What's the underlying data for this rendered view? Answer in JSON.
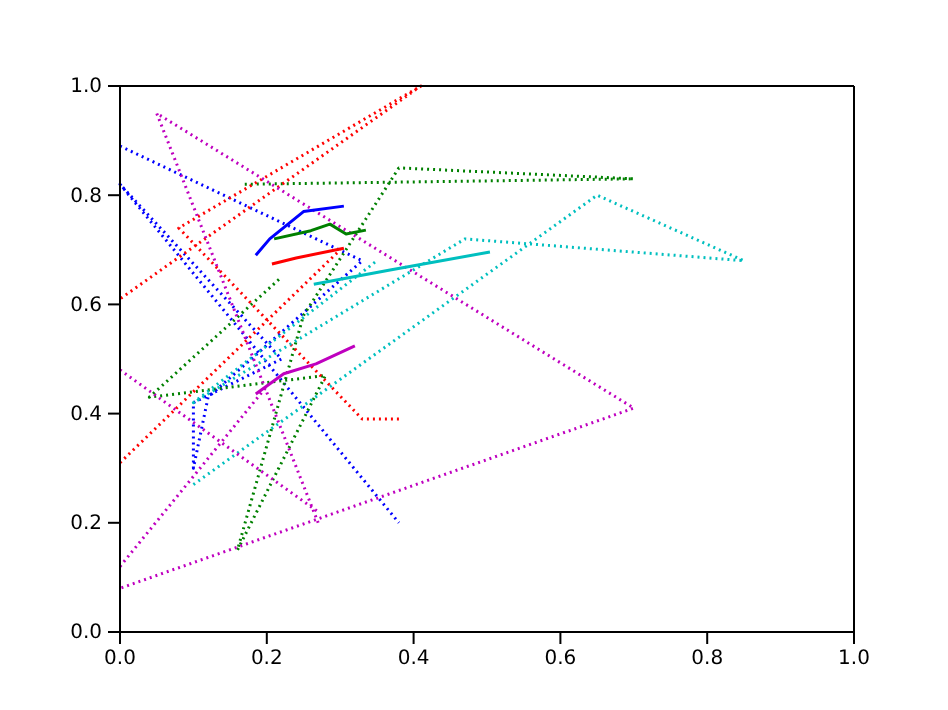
{
  "chart_data": {
    "type": "line",
    "xlim": [
      0,
      1
    ],
    "ylim": [
      0,
      1
    ],
    "xticks": [
      {
        "value": 0,
        "label": "0.0"
      },
      {
        "value": 0.2,
        "label": "0.2"
      },
      {
        "value": 0.4,
        "label": "0.4"
      },
      {
        "value": 0.6,
        "label": "0.6"
      },
      {
        "value": 0.8,
        "label": "0.8"
      },
      {
        "value": 1,
        "label": "1.0"
      }
    ],
    "yticks": [
      {
        "value": 0,
        "label": "0.0"
      },
      {
        "value": 0.2,
        "label": "0.2"
      },
      {
        "value": 0.4,
        "label": "0.4"
      },
      {
        "value": 0.6,
        "label": "0.6"
      },
      {
        "value": 0.8,
        "label": "0.8"
      },
      {
        "value": 1,
        "label": "1.0"
      }
    ],
    "grid": false,
    "marker": "none",
    "series": [
      {
        "color": "#0000ff",
        "line_style": "dotted",
        "x": [
          0,
          0.33,
          0.12,
          0.1,
          0.1,
          0.22,
          0,
          0.38
        ],
        "values": [
          0.89,
          0.68,
          0.43,
          0.3,
          0.42,
          0.5,
          0.82,
          0.2
        ]
      },
      {
        "color": "#008000",
        "line_style": "dotted",
        "x": [
          0.17,
          0.7,
          0.38,
          0.25,
          0.16,
          0.28,
          0.04,
          0.22
        ],
        "values": [
          0.82,
          0.83,
          0.85,
          0.58,
          0.15,
          0.47,
          0.43,
          0.65
        ]
      },
      {
        "color": "#ff0000",
        "line_style": "dotted",
        "x": [
          0.38,
          0.33,
          0.08,
          0.41,
          0
        ],
        "values": [
          0.39,
          0.39,
          0.74,
          1.0,
          0.61
        ]
      },
      {
        "color": "#ff0000",
        "line_style": "dotted",
        "x": [
          0,
          0.3
        ],
        "values": [
          0.31,
          0.7
        ]
      },
      {
        "color": "#00bfbf",
        "line_style": "dotted",
        "x": [
          0.1,
          0.65,
          0.85,
          0.47,
          0.1,
          0.35
        ],
        "values": [
          0.27,
          0.8,
          0.68,
          0.72,
          0.42,
          0.68
        ]
      },
      {
        "color": "#bf00bf",
        "line_style": "dotted",
        "x": [
          0.27,
          0.05,
          0.7,
          0
        ],
        "values": [
          0.2,
          0.95,
          0.41,
          0.08
        ]
      },
      {
        "color": "#bf00bf",
        "line_style": "dotted",
        "x": [
          0,
          0.2
        ],
        "values": [
          0.12,
          0.45
        ]
      },
      {
        "color": "#bf00bf",
        "line_style": "dotted",
        "x": [
          0,
          0.27
        ],
        "values": [
          0.48,
          0.22
        ]
      },
      {
        "color": "#0000ff",
        "line_style": "solid",
        "x": [
          0.185,
          0.204,
          0.25,
          0.305
        ],
        "values": [
          0.69,
          0.72,
          0.77,
          0.78
        ]
      },
      {
        "color": "#008000",
        "line_style": "solid",
        "x": [
          0.21,
          0.26,
          0.286,
          0.308,
          0.335
        ],
        "values": [
          0.72,
          0.735,
          0.747,
          0.729,
          0.736
        ]
      },
      {
        "color": "#ff0000",
        "line_style": "solid",
        "x": [
          0.207,
          0.24,
          0.305
        ],
        "values": [
          0.674,
          0.685,
          0.703
        ]
      },
      {
        "color": "#00bfbf",
        "line_style": "solid",
        "x": [
          0.264,
          0.368,
          0.504
        ],
        "values": [
          0.637,
          0.663,
          0.696
        ]
      },
      {
        "color": "#bf00bf",
        "line_style": "solid",
        "x": [
          0.185,
          0.223,
          0.267,
          0.32
        ],
        "values": [
          0.436,
          0.473,
          0.491,
          0.524
        ]
      }
    ]
  }
}
